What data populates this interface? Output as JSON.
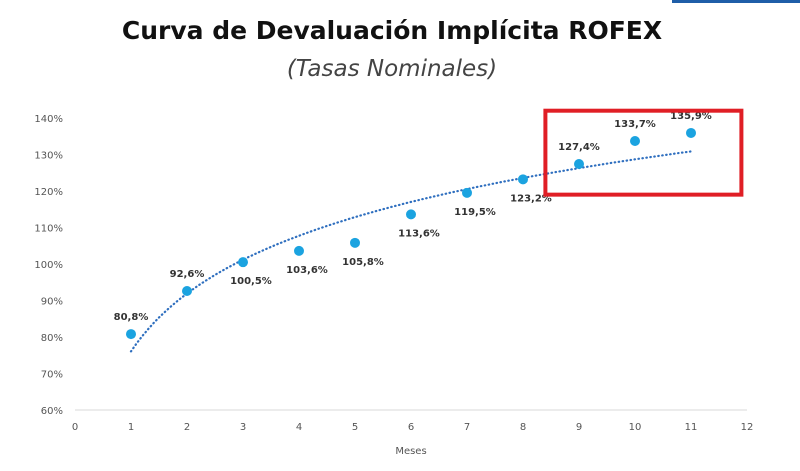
{
  "chart_data": {
    "type": "scatter",
    "title": "Curva de Devaluación Implícita ROFEX",
    "subtitle": "(Tasas Nominales)",
    "xlabel": "Meses",
    "ylabel": "",
    "xlim": [
      0,
      12
    ],
    "ylim": [
      60,
      140
    ],
    "x_ticks": [
      0,
      1,
      2,
      3,
      4,
      5,
      6,
      7,
      8,
      9,
      10,
      11,
      12
    ],
    "y_ticks": [
      "60%",
      "70%",
      "80%",
      "90%",
      "100%",
      "110%",
      "120%",
      "130%",
      "140%"
    ],
    "grid": false,
    "legend": "none",
    "point_color": "#1ba3e0",
    "trendline": {
      "type": "logarithmic",
      "style": "dotted",
      "color": "#2f6fbf"
    },
    "series": [
      {
        "x": [
          1,
          2,
          3,
          4,
          5,
          6,
          7,
          8,
          9,
          10,
          11
        ],
        "y": [
          80.8,
          92.6,
          100.5,
          103.6,
          105.8,
          113.6,
          119.5,
          123.2,
          127.4,
          133.7,
          135.9
        ],
        "labels": [
          "80,8%",
          "92,6%",
          "100,5%",
          "103,6%",
          "105,8%",
          "113,6%",
          "119,5%",
          "123,2%",
          "127,4%",
          "133,7%",
          "135,9%"
        ]
      }
    ],
    "highlight_box": {
      "x_range": [
        8.4,
        11.9
      ],
      "y_range": [
        119,
        142
      ],
      "color": "#e01e25"
    }
  }
}
